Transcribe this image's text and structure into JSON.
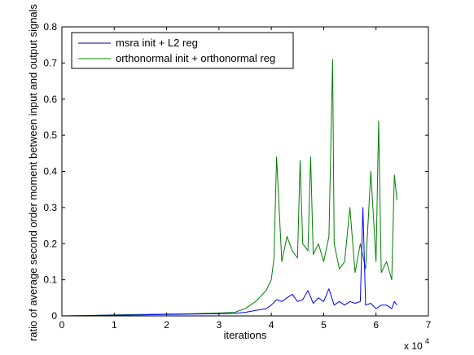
{
  "chart_data": {
    "type": "line",
    "title": "",
    "xlabel": "iterations",
    "ylabel": "ratio of average second order moment between input and output signals",
    "x_exponent_label": "x 10",
    "x_exponent_power": "4",
    "xlim": [
      0,
      7
    ],
    "ylim": [
      0,
      0.8
    ],
    "x_ticks": [
      0,
      1,
      2,
      3,
      4,
      5,
      6,
      7
    ],
    "x_tick_labels": [
      "0",
      "1",
      "2",
      "3",
      "4",
      "5",
      "6",
      "7"
    ],
    "y_ticks": [
      0,
      0.1,
      0.2,
      0.3,
      0.4,
      0.5,
      0.6,
      0.7,
      0.8
    ],
    "y_tick_labels": [
      "0",
      "0.1",
      "0.2",
      "0.3",
      "0.4",
      "0.5",
      "0.6",
      "0.7",
      "0.8"
    ],
    "grid": false,
    "legend_position": "top-left",
    "series": [
      {
        "name": "msra init + L2 reg",
        "color": "#0000ff",
        "legend_color": "#000080",
        "x": [
          0,
          0.5,
          1.0,
          1.5,
          2.0,
          2.5,
          3.0,
          3.3,
          3.5,
          3.7,
          3.9,
          4.0,
          4.1,
          4.2,
          4.3,
          4.4,
          4.5,
          4.6,
          4.7,
          4.8,
          4.9,
          5.0,
          5.1,
          5.2,
          5.3,
          5.4,
          5.5,
          5.6,
          5.7,
          5.75,
          5.8,
          5.9,
          6.0,
          6.1,
          6.2,
          6.3,
          6.35,
          6.4
        ],
        "y": [
          0.0,
          0.001,
          0.002,
          0.003,
          0.004,
          0.005,
          0.006,
          0.007,
          0.01,
          0.015,
          0.02,
          0.03,
          0.045,
          0.04,
          0.05,
          0.06,
          0.04,
          0.045,
          0.07,
          0.035,
          0.05,
          0.04,
          0.075,
          0.03,
          0.04,
          0.03,
          0.04,
          0.035,
          0.04,
          0.3,
          0.03,
          0.035,
          0.02,
          0.03,
          0.03,
          0.02,
          0.04,
          0.03
        ]
      },
      {
        "name": "orthonormal init + orthonormal reg",
        "color": "#008000",
        "legend_color": "#008000",
        "x": [
          0,
          0.5,
          1.0,
          1.5,
          2.0,
          2.5,
          3.0,
          3.3,
          3.5,
          3.7,
          3.9,
          4.0,
          4.05,
          4.1,
          4.2,
          4.3,
          4.4,
          4.5,
          4.55,
          4.6,
          4.7,
          4.75,
          4.8,
          4.9,
          5.0,
          5.1,
          5.17,
          5.2,
          5.3,
          5.4,
          5.5,
          5.6,
          5.7,
          5.8,
          5.9,
          6.0,
          6.05,
          6.1,
          6.2,
          6.3,
          6.35,
          6.4
        ],
        "y": [
          0.0,
          0.001,
          0.003,
          0.004,
          0.005,
          0.006,
          0.008,
          0.01,
          0.02,
          0.04,
          0.07,
          0.1,
          0.16,
          0.44,
          0.15,
          0.22,
          0.18,
          0.16,
          0.43,
          0.2,
          0.18,
          0.44,
          0.17,
          0.2,
          0.15,
          0.22,
          0.71,
          0.2,
          0.13,
          0.15,
          0.3,
          0.12,
          0.2,
          0.13,
          0.4,
          0.15,
          0.54,
          0.12,
          0.15,
          0.1,
          0.39,
          0.32
        ]
      }
    ]
  }
}
